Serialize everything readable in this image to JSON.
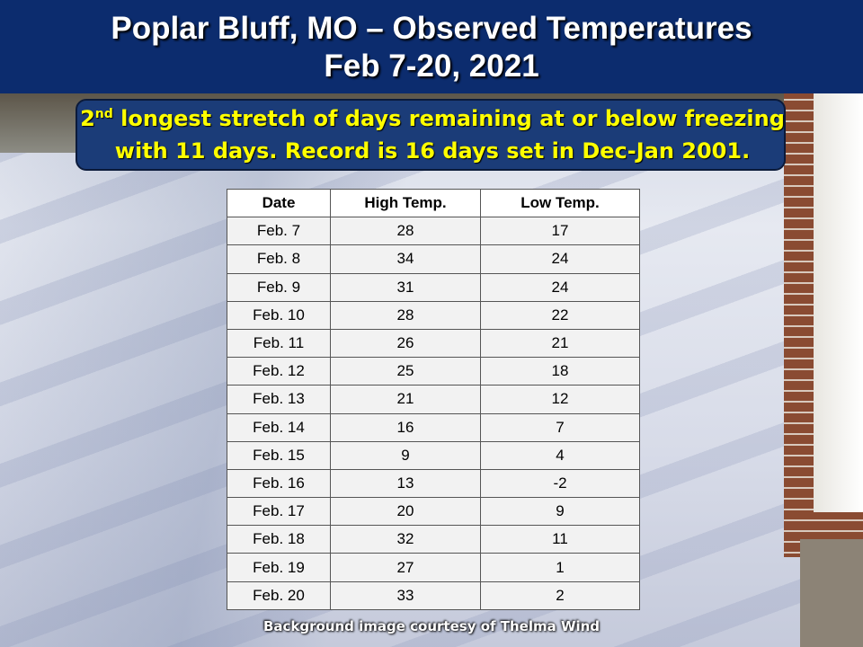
{
  "header": {
    "title_lines": [
      "Poplar Bluff, MO – Observed Temperatures",
      "Feb 7-20, 2021"
    ]
  },
  "callout": {
    "number": "2",
    "suffix": "nd",
    "line1": "longest stretch of days remaining at or below freezing",
    "line2": "with 11 days. Record is 16 days set in Dec-Jan 2001."
  },
  "table": {
    "columns": [
      "Date",
      "High Temp.",
      "Low Temp."
    ],
    "rows": [
      [
        "Feb. 7",
        28,
        17
      ],
      [
        "Feb. 8",
        34,
        24
      ],
      [
        "Feb. 9",
        31,
        24
      ],
      [
        "Feb. 10",
        28,
        22
      ],
      [
        "Feb. 11",
        26,
        21
      ],
      [
        "Feb. 12",
        25,
        18
      ],
      [
        "Feb. 13",
        21,
        12
      ],
      [
        "Feb. 14",
        16,
        7
      ],
      [
        "Feb. 15",
        9,
        4
      ],
      [
        "Feb. 16",
        13,
        -2
      ],
      [
        "Feb. 17",
        20,
        9
      ],
      [
        "Feb. 18",
        32,
        11
      ],
      [
        "Feb. 19",
        27,
        1
      ],
      [
        "Feb. 20",
        33,
        2
      ]
    ]
  },
  "footer": {
    "credit": "Background image courtesy of Thelma Wind"
  }
}
